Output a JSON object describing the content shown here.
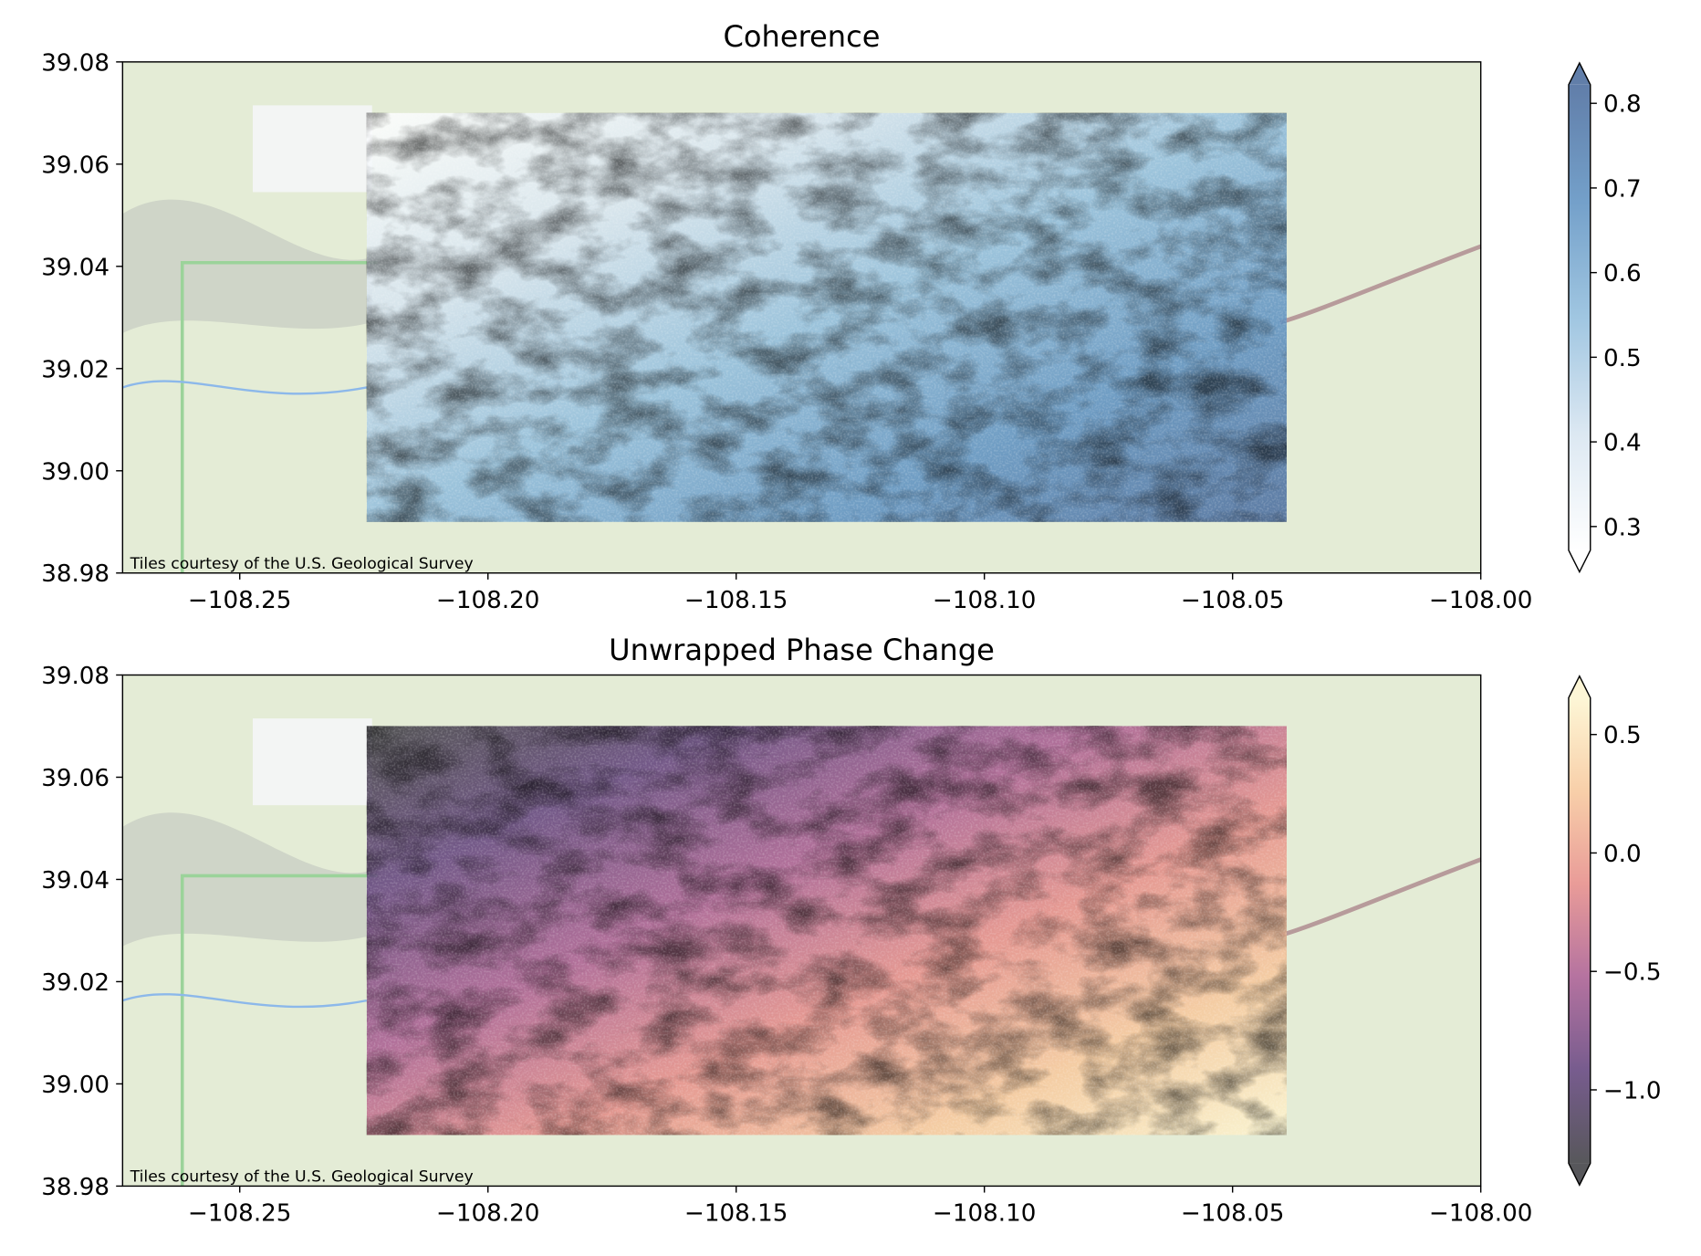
{
  "chart_data": [
    {
      "type": "image",
      "title": "Coherence",
      "xlim": [
        -108.2736,
        -108.0
      ],
      "ylim": [
        38.98,
        39.08
      ],
      "xticks": [
        {
          "value": -108.25,
          "label": "−108.25"
        },
        {
          "value": -108.2,
          "label": "−108.20"
        },
        {
          "value": -108.15,
          "label": "−108.15"
        },
        {
          "value": -108.1,
          "label": "−108.10"
        },
        {
          "value": -108.05,
          "label": "−108.05"
        },
        {
          "value": -108.0,
          "label": "−108.00"
        }
      ],
      "yticks": [
        38.98,
        {
          "value": 39.0,
          "label": "39.00"
        },
        39.02,
        39.04,
        39.06,
        39.08
      ],
      "extent": [
        -108.2244,
        -108.0391,
        38.99,
        39.07
      ],
      "colormap": [
        "#ffffff",
        "#d6e4f0",
        "#8fbcdc",
        "#5b8fc0",
        "#45679a"
      ],
      "clim": [
        0.272,
        0.822
      ],
      "cticks": [
        0.3,
        0.4,
        0.5,
        0.6,
        0.7,
        0.8
      ],
      "attribution": "Tiles courtesy of the U.S. Geological Survey"
    },
    {
      "type": "image",
      "title": "Unwrapped Phase Change",
      "xlim": [
        -108.2736,
        -108.0
      ],
      "ylim": [
        38.98,
        39.08
      ],
      "xticks": [
        {
          "value": -108.25,
          "label": "−108.25"
        },
        {
          "value": -108.2,
          "label": "−108.20"
        },
        {
          "value": -108.15,
          "label": "−108.15"
        },
        {
          "value": -108.1,
          "label": "−108.10"
        },
        {
          "value": -108.05,
          "label": "−108.05"
        },
        {
          "value": -108.0,
          "label": "−108.00"
        }
      ],
      "yticks": [
        38.98,
        {
          "value": 39.0,
          "label": "39.00"
        },
        39.02,
        39.04,
        39.06,
        39.08
      ],
      "extent": [
        -108.2244,
        -108.0391,
        38.99,
        39.07
      ],
      "colormap": [
        "#3a3a3e",
        "#5f3f7a",
        "#a85a8f",
        "#e58a86",
        "#f7c79a",
        "#fdf5cf"
      ],
      "clim": [
        -1.31,
        0.655
      ],
      "cticks": [
        {
          "value": -1.0,
          "label": "−1.0"
        },
        {
          "value": -0.5,
          "label": "−0.5"
        },
        {
          "value": 0,
          "label": "0.0"
        },
        0.5
      ],
      "attribution": "Tiles courtesy of the U.S. Geological Survey"
    }
  ]
}
